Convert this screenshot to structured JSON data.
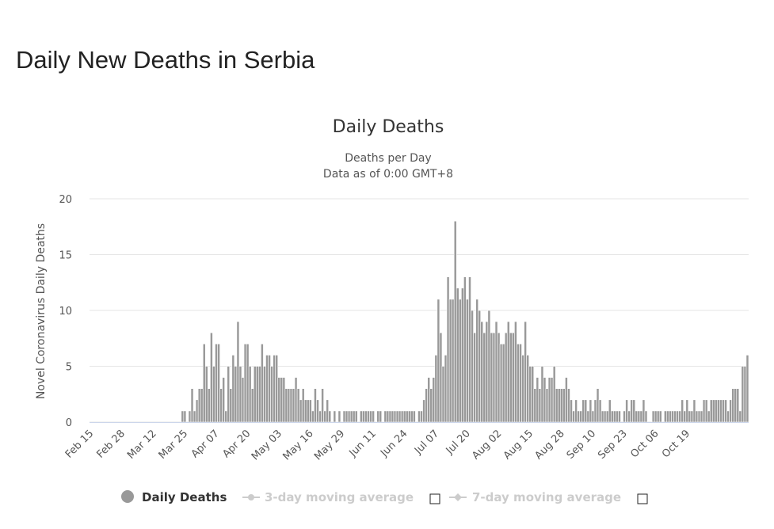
{
  "page": {
    "title": "Daily New Deaths in Serbia"
  },
  "colors": {
    "bar": "#999999",
    "bar_stroke": "#ffffff",
    "grid": "#e6e6e6",
    "legend_active": "#333333",
    "legend_inactive": "#cccccc"
  },
  "chart_data": {
    "type": "bar",
    "title": "Daily Deaths",
    "subtitle": [
      "Deaths per Day",
      "Data as of 0:00 GMT+8"
    ],
    "ylabel": "Novel Coronavirus Daily Deaths",
    "xlabel": "",
    "ylim": [
      0,
      20
    ],
    "yticks": [
      0,
      5,
      10,
      15,
      20
    ],
    "grid": true,
    "legend_placement": "bottom",
    "x_start": "Feb 15",
    "x_ticks": [
      "Feb 15",
      "Feb 28",
      "Mar 12",
      "Mar 25",
      "Apr 07",
      "Apr 20",
      "May 03",
      "May 16",
      "May 29",
      "Jun 11",
      "Jun 24",
      "Jul 07",
      "Jul 20",
      "Aug 02",
      "Aug 15",
      "Aug 28",
      "Sep 10",
      "Sep 23",
      "Oct 06",
      "Oct 19"
    ],
    "series": [
      {
        "name": "Daily Deaths",
        "values": [
          0,
          0,
          0,
          0,
          0,
          0,
          0,
          0,
          0,
          0,
          0,
          0,
          0,
          0,
          0,
          0,
          0,
          0,
          0,
          0,
          0,
          0,
          0,
          0,
          0,
          0,
          0,
          0,
          0,
          0,
          0,
          0,
          0,
          0,
          0,
          0,
          0,
          0,
          1,
          1,
          0,
          1,
          3,
          1,
          2,
          3,
          3,
          7,
          5,
          3,
          8,
          5,
          7,
          7,
          3,
          4,
          1,
          5,
          3,
          6,
          5,
          9,
          5,
          4,
          7,
          7,
          5,
          3,
          5,
          5,
          5,
          7,
          5,
          6,
          6,
          5,
          6,
          6,
          4,
          4,
          4,
          3,
          3,
          3,
          3,
          4,
          3,
          2,
          3,
          2,
          2,
          2,
          1,
          3,
          2,
          1,
          3,
          1,
          2,
          1,
          0,
          1,
          0,
          1,
          0,
          1,
          1,
          1,
          1,
          1,
          1,
          0,
          1,
          1,
          1,
          1,
          1,
          1,
          0,
          1,
          1,
          0,
          1,
          1,
          1,
          1,
          1,
          1,
          1,
          1,
          1,
          1,
          1,
          1,
          1,
          0,
          1,
          1,
          2,
          3,
          4,
          3,
          4,
          6,
          11,
          8,
          5,
          6,
          13,
          11,
          11,
          18,
          12,
          11,
          12,
          13,
          11,
          13,
          10,
          8,
          11,
          10,
          9,
          8,
          9,
          10,
          8,
          8,
          9,
          8,
          7,
          7,
          8,
          9,
          8,
          8,
          9,
          7,
          7,
          6,
          9,
          6,
          5,
          5,
          3,
          4,
          3,
          5,
          4,
          3,
          4,
          4,
          5,
          3,
          3,
          3,
          3,
          4,
          3,
          2,
          1,
          2,
          1,
          1,
          2,
          2,
          1,
          2,
          1,
          2,
          3,
          2,
          1,
          1,
          1,
          2,
          1,
          1,
          1,
          1,
          0,
          1,
          2,
          1,
          2,
          2,
          1,
          1,
          1,
          2,
          1,
          0,
          0,
          1,
          1,
          1,
          1,
          0,
          1,
          1,
          1,
          1,
          1,
          1,
          1,
          2,
          1,
          2,
          1,
          1,
          2,
          1,
          1,
          1,
          2,
          2,
          1,
          2,
          2,
          2,
          2,
          2,
          2,
          2,
          1,
          2,
          3,
          3,
          3,
          1,
          5,
          5,
          6
        ]
      }
    ],
    "legend": [
      {
        "label": "Daily Deaths",
        "active": true,
        "marker": "circle"
      },
      {
        "label": "3-day moving average",
        "active": false,
        "marker": "line-circle"
      },
      {
        "label": "7-day moving average",
        "active": false,
        "marker": "line-diamond"
      }
    ]
  }
}
